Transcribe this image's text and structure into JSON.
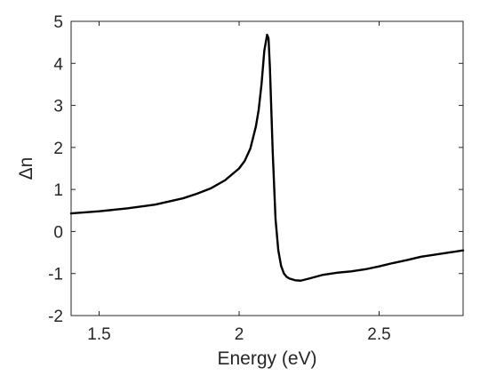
{
  "chart_data": {
    "type": "line",
    "title": "",
    "xlabel": "Energy (eV)",
    "ylabel": "Δn",
    "xlim": [
      1.4,
      2.8
    ],
    "ylim": [
      -2,
      5
    ],
    "xticks": [
      1.5,
      2,
      2.5
    ],
    "xtick_labels": [
      "1.5",
      "2",
      "2.5"
    ],
    "yticks": [
      -2,
      -1,
      0,
      1,
      2,
      3,
      4,
      5
    ],
    "ytick_labels": [
      "-2",
      "-1",
      "0",
      "1",
      "2",
      "3",
      "4",
      "5"
    ],
    "grid": false,
    "legend": "none",
    "line_color": "#000000",
    "axis_color": "#262626",
    "series": [
      {
        "x": [
          1.4,
          1.5,
          1.6,
          1.7,
          1.8,
          1.85,
          1.9,
          1.95,
          2.0,
          2.02,
          2.04,
          2.06,
          2.07,
          2.08,
          2.09,
          2.1,
          2.105,
          2.11,
          2.12,
          2.13,
          2.14,
          2.15,
          2.16,
          2.17,
          2.18,
          2.2,
          2.22,
          2.25,
          2.3,
          2.35,
          2.4,
          2.45,
          2.5,
          2.55,
          2.6,
          2.65,
          2.7,
          2.75,
          2.8
        ],
        "y": [
          0.43,
          0.48,
          0.55,
          0.64,
          0.79,
          0.9,
          1.03,
          1.22,
          1.5,
          1.68,
          1.97,
          2.5,
          2.9,
          3.5,
          4.3,
          4.68,
          4.6,
          3.9,
          1.9,
          0.3,
          -0.45,
          -0.82,
          -1.0,
          -1.08,
          -1.12,
          -1.16,
          -1.17,
          -1.12,
          -1.03,
          -0.98,
          -0.95,
          -0.9,
          -0.83,
          -0.75,
          -0.68,
          -0.6,
          -0.55,
          -0.5,
          -0.45
        ]
      }
    ]
  }
}
